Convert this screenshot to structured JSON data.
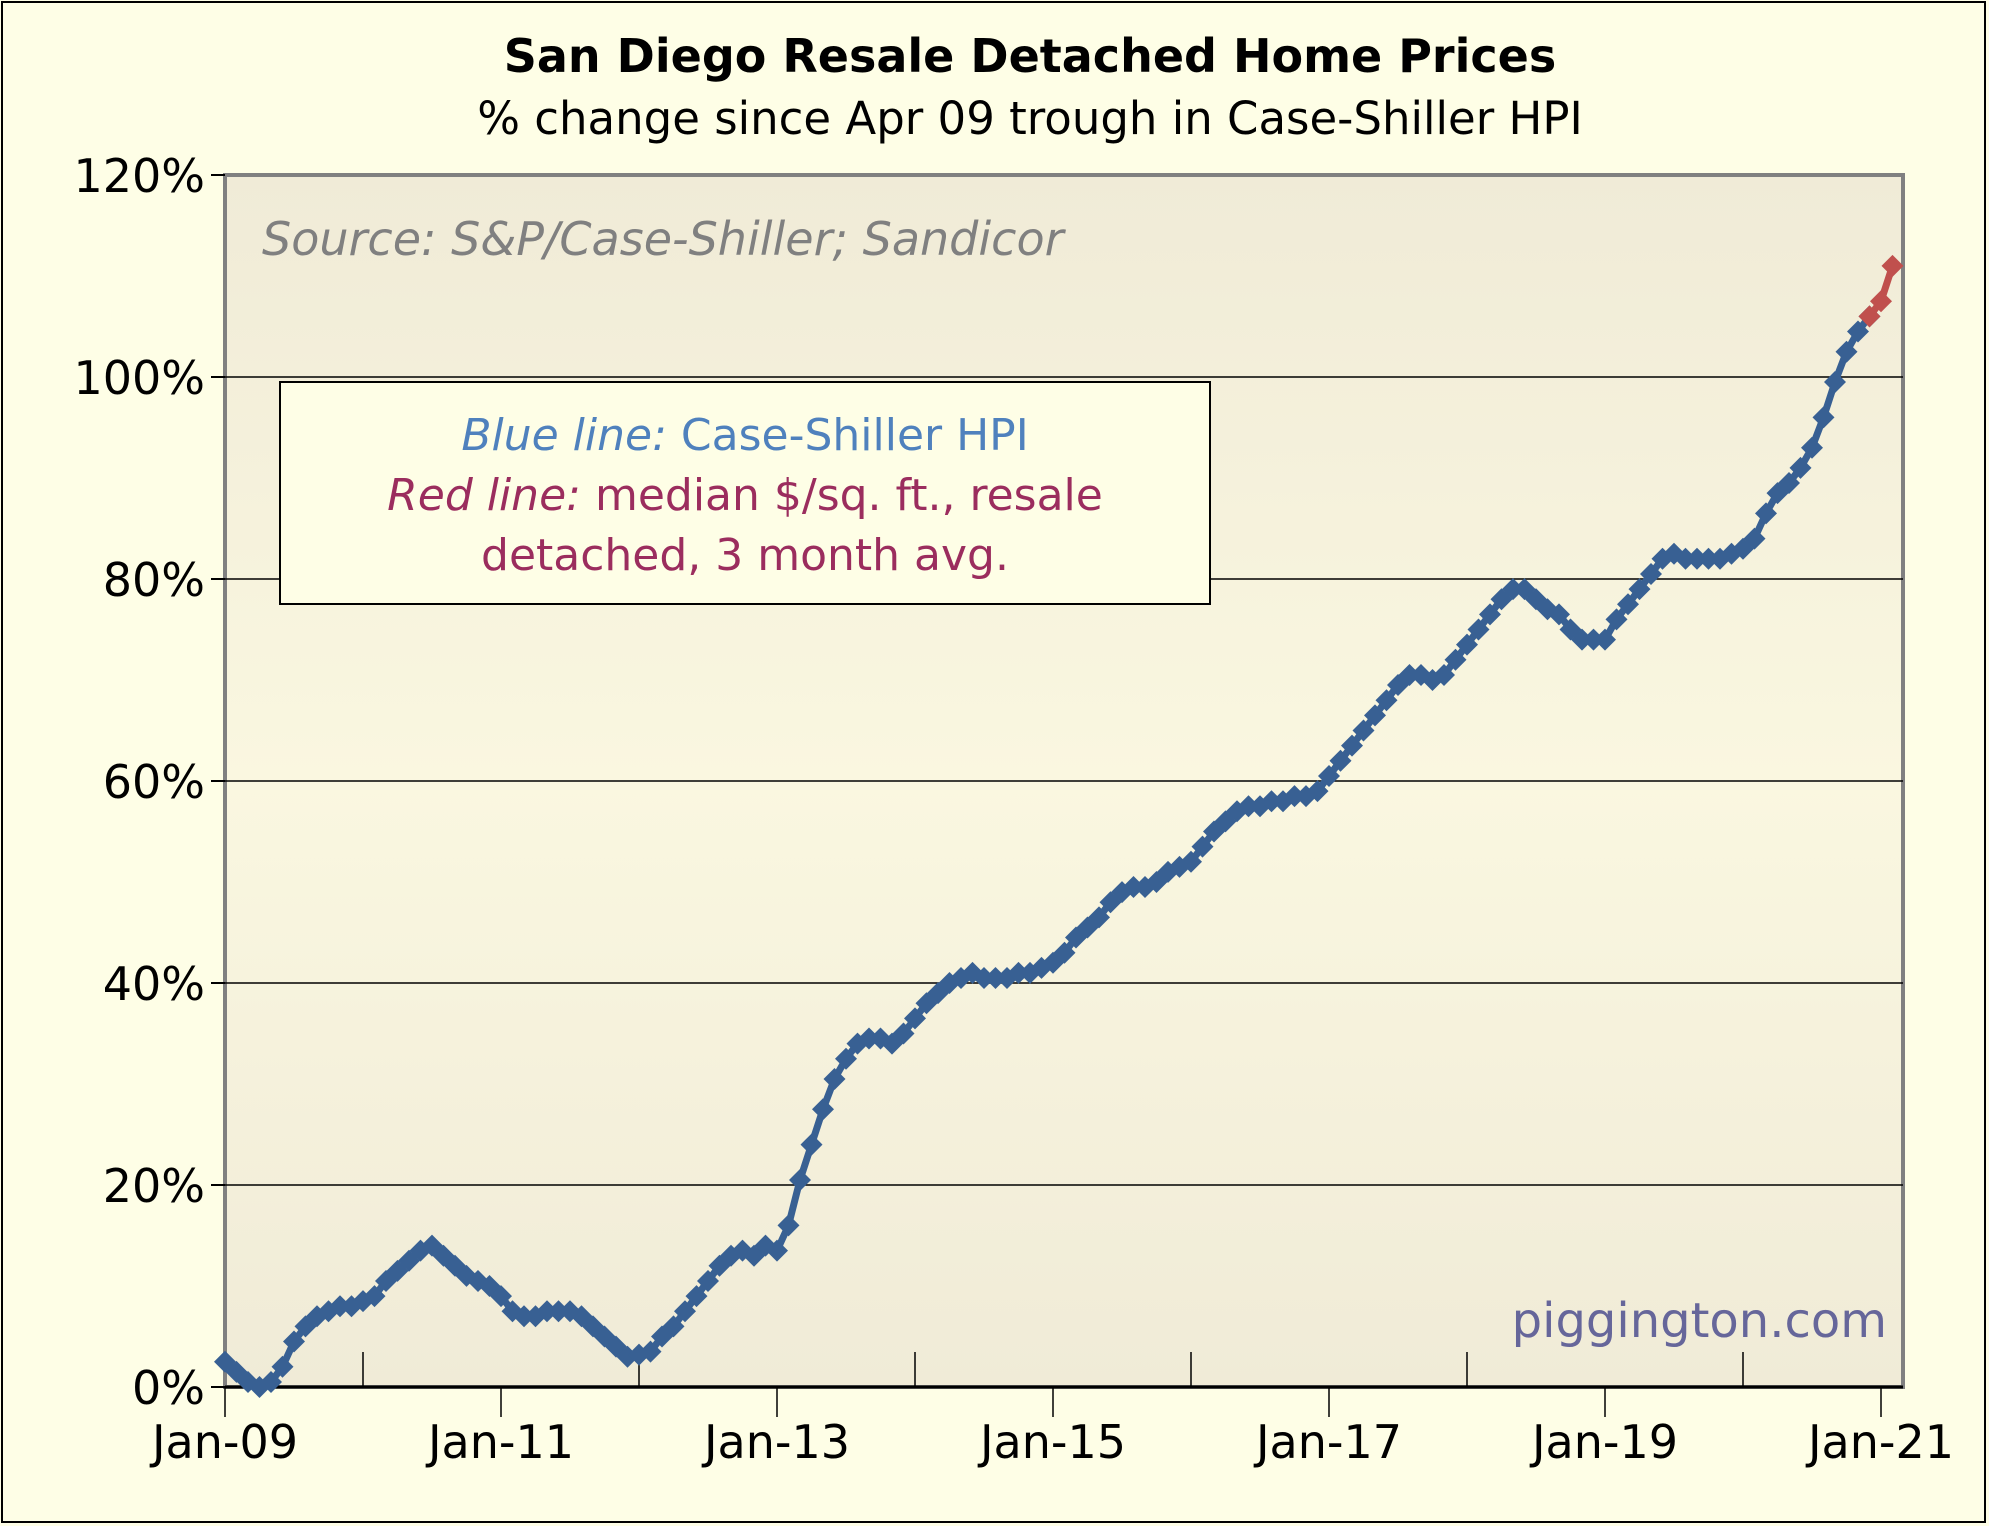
{
  "chart_data": {
    "type": "line",
    "title": "San Diego Resale Detached Home Prices",
    "subtitle": "% change since Apr 09 trough in Case-Shiller HPI",
    "source": "Source: S&P/Case-Shiller; Sandicor",
    "watermark": "piggington.com",
    "legend": {
      "placement": "top-left",
      "line1_italic": "Blue line:",
      "line1_rest": " Case-Shiller HPI",
      "line2_italic": "Red line:",
      "line2_rest": " median $/sq. ft., resale",
      "line3": "detached, 3 month avg."
    },
    "xlabel": "",
    "ylabel": "",
    "ylim": [
      0,
      120
    ],
    "yticks": [
      0,
      20,
      40,
      60,
      80,
      100,
      120
    ],
    "ytick_labels": [
      "0%",
      "20%",
      "40%",
      "60%",
      "80%",
      "100%",
      "120%"
    ],
    "xtick_labels": [
      "Jan-09",
      "Jan-11",
      "Jan-13",
      "Jan-15",
      "Jan-17",
      "Jan-19",
      "Jan-21"
    ],
    "x_start": "Jan-09",
    "x_unit": "months since Jan-09",
    "xlim": [
      0,
      146
    ],
    "grid": true,
    "colors": {
      "blue": "#386093",
      "red": "#c0504d",
      "legend_blue": "#4f81bd",
      "legend_red": "#9b2d5e",
      "watermark": "#66669a",
      "source": "#808080"
    },
    "series": [
      {
        "name": "Case-Shiller HPI",
        "color": "#386093",
        "start_month": 0,
        "values": [
          2.5,
          1.5,
          0.5,
          0,
          0.5,
          2,
          4.5,
          6,
          7,
          7.5,
          8,
          8,
          8.5,
          9,
          10.5,
          11.5,
          12.5,
          13.5,
          14,
          13,
          12,
          11,
          10.5,
          10,
          9,
          7.5,
          7,
          7,
          7.5,
          7.5,
          7.5,
          7,
          6,
          5,
          4,
          3,
          3.2,
          3.5,
          5,
          6,
          7.5,
          9,
          10.5,
          12,
          13,
          13.5,
          13,
          14,
          13.5,
          16,
          20.5,
          24,
          27.5,
          30.5,
          32.5,
          34,
          34.5,
          34.5,
          34,
          35,
          36.5,
          38,
          39,
          40,
          40.5,
          41,
          40.5,
          40.5,
          40.5,
          41,
          41,
          41.5,
          42,
          43,
          44.5,
          45.5,
          46.5,
          48,
          49,
          49.5,
          49.5,
          50,
          51,
          51.5,
          52,
          53.5,
          55,
          56,
          57,
          57.5,
          57.5,
          58,
          58,
          58.5,
          58.5,
          59,
          60.5,
          62,
          63.5,
          65,
          66.5,
          68,
          69.5,
          70.5,
          70.5,
          70,
          70.5,
          72,
          73.5,
          75,
          76.5,
          78,
          79,
          79,
          78,
          77,
          76.5,
          75,
          74,
          74,
          74,
          76,
          77.5,
          79,
          80.5,
          82,
          82.5,
          82,
          82,
          82,
          82,
          82.5,
          83,
          84,
          86.5,
          88.5,
          89.5,
          91,
          93,
          96,
          99.5,
          102.5,
          104.5,
          106
        ]
      },
      {
        "name": "median $/sq. ft., resale detached, 3 month avg.",
        "color": "#c0504d",
        "start_month": 143,
        "values": [
          106,
          107.5,
          111
        ]
      }
    ]
  }
}
